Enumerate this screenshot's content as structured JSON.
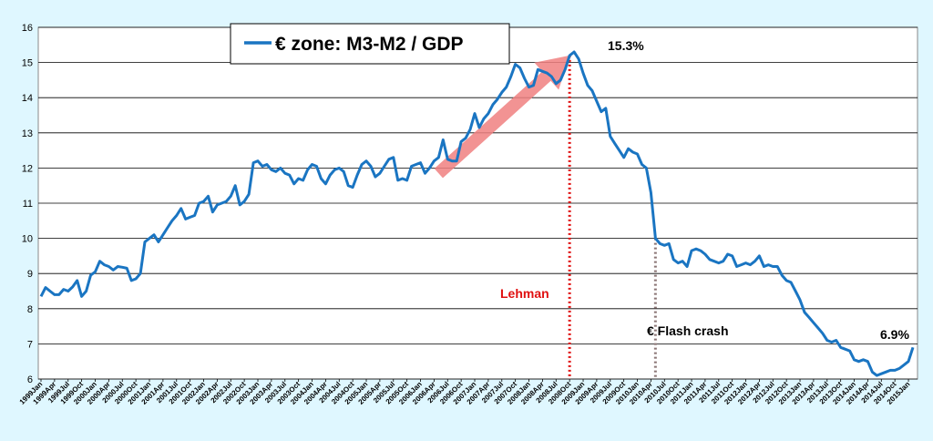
{
  "chart_data": {
    "type": "line",
    "title": "",
    "xlabel": "",
    "ylabel": "",
    "ylim": [
      6,
      16
    ],
    "yticks": [
      6,
      7,
      8,
      9,
      10,
      11,
      12,
      13,
      14,
      15,
      16
    ],
    "grid": "horizontal",
    "legend_placement": "top-left",
    "x_tick_labels": [
      "1999Jan",
      "1999Apr",
      "1999Jul",
      "1999Oct",
      "2000Jan",
      "2000Apr",
      "2000Jul",
      "2000Oct",
      "2001Jan",
      "2001Apr",
      "2001Jul",
      "2001Oct",
      "2002Jan",
      "2002Apr",
      "2002Jul",
      "2002Oct",
      "2003Jan",
      "2003Apr",
      "2003Jul",
      "2003Oct",
      "2004Jan",
      "2004Apr",
      "2004Jul",
      "2004Oct",
      "2005Jan",
      "2005Apr",
      "2005Jul",
      "2005Oct",
      "2006Jan",
      "2006Apr",
      "2006Jul",
      "2006Oct",
      "2007Jan",
      "2007Apr",
      "2007Jul",
      "2007Oct",
      "2008Jan",
      "2008Apr",
      "2008Jul",
      "2008Oct",
      "2009Jan",
      "2009Apr",
      "2009Jul",
      "2009Oct",
      "2010Jan",
      "2010Apr",
      "2010Jul",
      "2010Oct",
      "2011Jan",
      "2011Apr",
      "2011Jul",
      "2011Oct",
      "2012Jan",
      "2012Apr",
      "2012Jul",
      "2012Oct",
      "2013Jan",
      "2013Apr",
      "2013Jul",
      "2013Oct",
      "2014Jan",
      "2014Apr",
      "2014Jul",
      "2014Oct",
      "2015Jan"
    ],
    "series": [
      {
        "name": "€ zone:  M3-M2 / GDP",
        "color": "#1a75c2",
        "values": [
          8.35,
          8.6,
          8.5,
          8.4,
          8.4,
          8.55,
          8.5,
          8.62,
          8.8,
          8.35,
          8.5,
          8.95,
          9.05,
          9.35,
          9.25,
          9.2,
          9.1,
          9.2,
          9.18,
          9.15,
          8.8,
          8.85,
          9.0,
          9.9,
          10.0,
          10.1,
          9.9,
          10.1,
          10.3,
          10.5,
          10.65,
          10.85,
          10.55,
          10.6,
          10.65,
          11.0,
          11.05,
          11.2,
          10.75,
          10.95,
          11.0,
          11.05,
          11.2,
          11.5,
          10.95,
          11.05,
          11.25,
          12.15,
          12.2,
          12.05,
          12.1,
          11.95,
          11.9,
          12.0,
          11.85,
          11.8,
          11.55,
          11.7,
          11.65,
          11.95,
          12.1,
          12.05,
          11.7,
          11.55,
          11.8,
          11.95,
          12.0,
          11.9,
          11.5,
          11.45,
          11.8,
          12.1,
          12.2,
          12.05,
          11.75,
          11.85,
          12.05,
          12.25,
          12.3,
          11.65,
          11.7,
          11.65,
          12.05,
          12.1,
          12.15,
          11.85,
          12.0,
          12.2,
          12.3,
          12.8,
          12.25,
          12.2,
          12.2,
          12.75,
          12.85,
          13.1,
          13.55,
          13.15,
          13.4,
          13.55,
          13.8,
          13.95,
          14.15,
          14.3,
          14.6,
          14.95,
          14.85,
          14.55,
          14.3,
          14.35,
          14.8,
          14.75,
          14.7,
          14.6,
          14.4,
          14.5,
          14.8,
          15.2,
          15.3,
          15.1,
          14.7,
          14.35,
          14.2,
          13.9,
          13.6,
          13.7,
          12.9,
          12.7,
          12.5,
          12.3,
          12.55,
          12.45,
          12.4,
          12.1,
          12.0,
          11.3,
          10.0,
          9.85,
          9.8,
          9.85,
          9.4,
          9.3,
          9.35,
          9.2,
          9.65,
          9.7,
          9.65,
          9.55,
          9.4,
          9.35,
          9.3,
          9.35,
          9.55,
          9.5,
          9.2,
          9.25,
          9.3,
          9.25,
          9.35,
          9.5,
          9.2,
          9.25,
          9.2,
          9.2,
          8.95,
          8.8,
          8.75,
          8.5,
          8.25,
          7.9,
          7.75,
          7.6,
          7.45,
          7.3,
          7.1,
          7.05,
          7.1,
          6.9,
          6.85,
          6.8,
          6.55,
          6.5,
          6.55,
          6.5,
          6.2,
          6.1,
          6.15,
          6.2,
          6.25,
          6.25,
          6.3,
          6.4,
          6.5,
          6.9
        ]
      }
    ],
    "annotations": [
      {
        "key": "peak",
        "text": "15.3%",
        "color": "#000000"
      },
      {
        "key": "last",
        "text": "6.9%",
        "color": "#000000"
      },
      {
        "key": "lehman",
        "text": "Lehman",
        "color": "#e01010"
      },
      {
        "key": "flash",
        "text": "€  Flash crash",
        "color": "#000000"
      }
    ],
    "vlines": [
      {
        "key": "lehman",
        "month_index": 117,
        "color": "#e01010",
        "style": "dotted"
      },
      {
        "key": "flash",
        "month_index": 136,
        "color": "#8a7575",
        "style": "dotted"
      }
    ],
    "trend_arrow": {
      "from_month_index": 88,
      "from_value": 11.85,
      "to_month_index": 117,
      "to_value": 15.2,
      "color": "#f08080"
    }
  }
}
